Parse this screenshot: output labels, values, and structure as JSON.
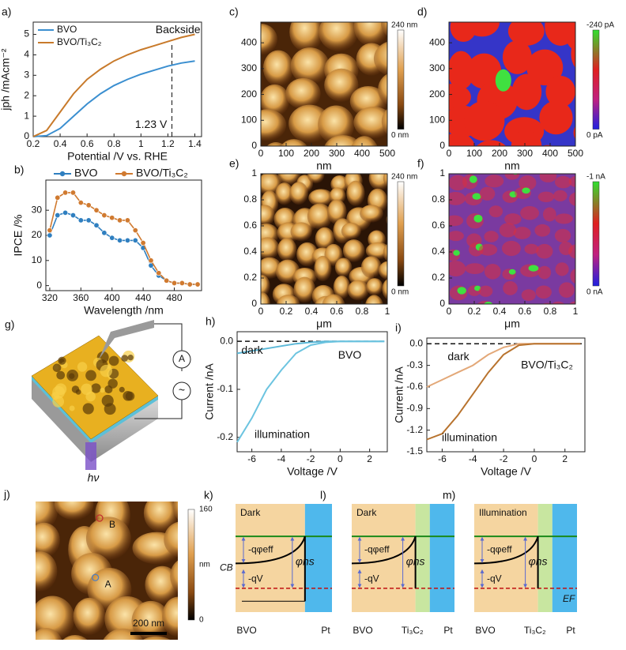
{
  "chart_data": [
    {
      "type": "line",
      "label": "a)",
      "xlabel": "Potential /V vs. RHE",
      "ylabel": "jph /mAcm⁻²",
      "x": [
        0.2,
        0.3,
        0.4,
        0.5,
        0.6,
        0.7,
        0.8,
        0.9,
        1.0,
        1.1,
        1.2,
        1.3,
        1.4
      ],
      "series": [
        {
          "name": "BVO",
          "color": "#3b8fd0",
          "values": [
            0,
            0.05,
            0.4,
            1.0,
            1.6,
            2.1,
            2.5,
            2.8,
            3.05,
            3.25,
            3.45,
            3.6,
            3.7
          ]
        },
        {
          "name": "BVO/Ti₃C₂",
          "color": "#c87a2b",
          "values": [
            0,
            0.3,
            1.2,
            2.1,
            2.8,
            3.3,
            3.7,
            4.0,
            4.25,
            4.45,
            4.65,
            4.85,
            5.0
          ]
        }
      ],
      "xlim": [
        0.2,
        1.45
      ],
      "ylim": [
        0,
        5.6
      ],
      "xticks": [
        0.2,
        0.4,
        0.6,
        0.8,
        1.0,
        1.2,
        1.4
      ],
      "yticks": [
        0,
        1,
        2,
        3,
        4,
        5
      ],
      "vline": 1.23,
      "annotations": [
        "Backside",
        "1.23 V"
      ],
      "legend": "top-left"
    },
    {
      "type": "line",
      "label": "b)",
      "xlabel": "Wavelength /nm",
      "ylabel": "IPCE /%",
      "markers": true,
      "x": [
        320,
        330,
        340,
        350,
        360,
        370,
        380,
        390,
        400,
        410,
        420,
        430,
        440,
        450,
        460,
        470,
        480,
        490,
        500,
        510
      ],
      "series": [
        {
          "name": "BVO",
          "color": "#2f7fc0",
          "values": [
            20,
            28,
            29,
            28,
            26,
            26,
            24,
            21,
            19,
            18,
            18,
            18,
            15,
            8,
            4,
            2,
            1,
            1,
            0.5,
            0.5
          ]
        },
        {
          "name": "BVO/Ti₃C₂",
          "color": "#d07a30",
          "values": [
            22,
            35,
            37,
            37,
            33,
            32,
            30,
            28,
            27,
            26,
            26,
            22,
            17,
            10,
            5,
            2,
            1,
            1,
            0.5,
            0.5
          ]
        }
      ],
      "xlim": [
        315,
        515
      ],
      "ylim": [
        -2,
        42
      ],
      "xticks": [
        320,
        360,
        400,
        440,
        480
      ],
      "yticks": [
        0,
        10,
        20,
        30
      ],
      "legend": "top"
    },
    {
      "type": "line",
      "label": "h)",
      "xlabel": "Voltage /V",
      "ylabel": "Current /nA",
      "x": [
        -7,
        -6,
        -5,
        -4,
        -3,
        -2,
        -1,
        0,
        1,
        2,
        3
      ],
      "series": [
        {
          "name": "dark",
          "color": "#5bb8d8",
          "values": [
            -0.025,
            -0.02,
            -0.015,
            -0.01,
            -0.005,
            -0.002,
            0,
            0,
            0,
            0,
            0
          ]
        },
        {
          "name": "illumination",
          "color": "#6cc4e0",
          "values": [
            -0.21,
            -0.16,
            -0.1,
            -0.06,
            -0.025,
            -0.008,
            -0.002,
            0,
            0,
            0,
            0
          ]
        }
      ],
      "xlim": [
        -7,
        3.2
      ],
      "ylim": [
        -0.23,
        0.02
      ],
      "xticks": [
        -6,
        -4,
        -2,
        0,
        2
      ],
      "yticks": [
        {
          "value": 0,
          "label": "0.0"
        },
        -0.1,
        -0.2
      ],
      "hline": 0,
      "annotations": [
        "dark",
        "BVO",
        "illumination"
      ]
    },
    {
      "type": "line",
      "label": "i)",
      "xlabel": "Voltage /V",
      "ylabel": "Current /nA",
      "x": [
        -7,
        -6,
        -5,
        -4,
        -3,
        -2,
        -1,
        0,
        1,
        2,
        3
      ],
      "series": [
        {
          "name": "dark",
          "color": "#e3a878",
          "values": [
            -0.6,
            -0.5,
            -0.4,
            -0.3,
            -0.15,
            -0.05,
            0,
            0,
            0,
            0,
            0
          ]
        },
        {
          "name": "illumination",
          "color": "#b8732e",
          "values": [
            -1.33,
            -1.25,
            -1.0,
            -0.7,
            -0.4,
            -0.15,
            -0.02,
            0,
            0,
            0,
            0
          ]
        }
      ],
      "xlim": [
        -7,
        3.3
      ],
      "ylim": [
        -1.5,
        0.08
      ],
      "xticks": [
        -6,
        -4,
        -2,
        0,
        2
      ],
      "yticks": [
        {
          "value": 0,
          "label": "0.0"
        },
        -0.3,
        -0.6,
        -0.9,
        -1.2,
        -1.5
      ],
      "hline": 0,
      "annotations": [
        "dark",
        "BVO/Ti₃C₂",
        "illumination"
      ]
    },
    {
      "type": "map",
      "label": "c)",
      "xlabel": "nm",
      "xlim": [
        0,
        500
      ],
      "ylim": [
        0,
        480
      ],
      "xticks": [
        0,
        100,
        200,
        300,
        400,
        500
      ],
      "yticks": [
        0,
        100,
        200,
        300,
        400
      ],
      "colorbar": [
        "240 nm",
        "0 nm"
      ]
    },
    {
      "type": "map",
      "label": "d)",
      "xlabel": "nm",
      "xlim": [
        0,
        500
      ],
      "ylim": [
        0,
        480
      ],
      "xticks": [
        0,
        100,
        200,
        300,
        400,
        500
      ],
      "yticks": [
        0,
        100,
        200,
        300,
        400
      ],
      "colorbar": [
        "-240 pA",
        "0 pA"
      ]
    },
    {
      "type": "map",
      "label": "e)",
      "xlabel": "μm",
      "xlim": [
        0,
        1
      ],
      "ylim": [
        0,
        1
      ],
      "xticks": [
        0,
        0.2,
        0.4,
        0.6,
        0.8,
        1
      ],
      "yticks": [
        0,
        0.2,
        0.4,
        0.6,
        0.8,
        1
      ],
      "colorbar": [
        "240 nm",
        "0 nm"
      ]
    },
    {
      "type": "map",
      "label": "f)",
      "xlabel": "μm",
      "xlim": [
        0,
        1
      ],
      "ylim": [
        0,
        1
      ],
      "xticks": [
        0,
        0.2,
        0.4,
        0.6,
        0.8,
        1
      ],
      "yticks": [
        0,
        0.2,
        0.4,
        0.6,
        0.8,
        1
      ],
      "colorbar": [
        "-1 nA",
        "0 nA"
      ]
    },
    {
      "type": "map",
      "label": "j)",
      "colorbar": [
        "160",
        "nm",
        "0"
      ],
      "scalebar": "200 nm",
      "points": [
        "A",
        "B"
      ]
    }
  ],
  "schematic": {
    "label": "g)",
    "light": "hν",
    "meter": "A",
    "source": "~"
  },
  "bands": [
    {
      "label": "k)",
      "title": "Dark",
      "layers": [
        "BVO",
        "Pt"
      ],
      "texts": {
        "barrier": "-qφeff",
        "height": "φns",
        "cb": "CB",
        "voltage": "-qV"
      }
    },
    {
      "label": "l)",
      "title": "Dark",
      "layers": [
        "BVO",
        "Ti₃C₂",
        "Pt"
      ],
      "texts": {
        "barrier": "-qφeff",
        "height": "φns",
        "voltage": "-qV"
      }
    },
    {
      "label": "m)",
      "title": "Illumination",
      "layers": [
        "BVO",
        "Ti₃C₂",
        "Pt"
      ],
      "texts": {
        "barrier": "-qφeff",
        "height": "φns",
        "voltage": "-qV",
        "fermi": "EF"
      }
    }
  ]
}
